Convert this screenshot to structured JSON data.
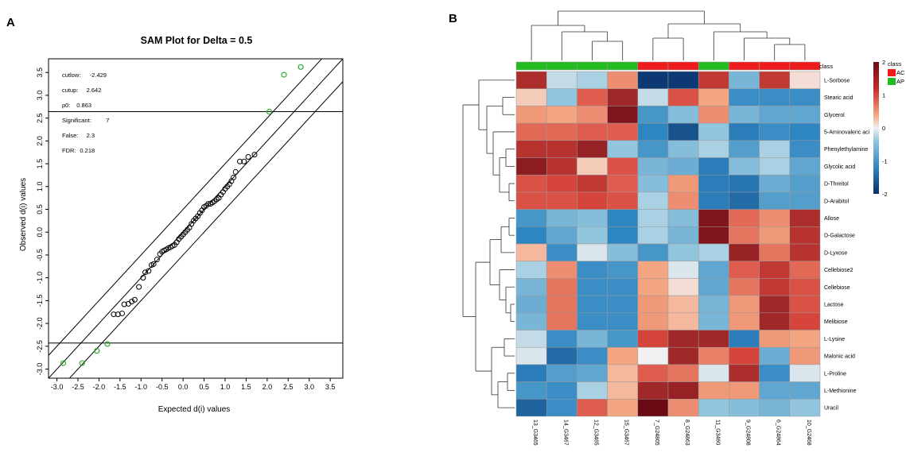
{
  "panels": {
    "a": "A",
    "b": "B"
  },
  "chart_data": [
    {
      "type": "scatter",
      "title": "SAM Plot for Delta = 0.5",
      "xlabel": "Expected d(i) values",
      "ylabel": "Observed d(i) values",
      "xlim": [
        -3.2,
        3.8
      ],
      "ylim": [
        -3.2,
        3.8
      ],
      "xticks": [
        "-3.0",
        "-2.5",
        "-2.0",
        "-1.5",
        "-1.0",
        "-0.5",
        "0.0",
        "0.5",
        "1.0",
        "1.5",
        "2.0",
        "2.5",
        "3.0",
        "3.5"
      ],
      "yticks": [
        "-3.0",
        "-2.5",
        "-2.0",
        "-1.5",
        "-1.0",
        "-0.5",
        "0.0",
        "0.5",
        "1.0",
        "1.5",
        "2.0",
        "2.5",
        "3.0",
        "3.5"
      ],
      "stats": [
        {
          "label": "cutlow:",
          "value": "-2.429"
        },
        {
          "label": "cutup:",
          "value": "2.642"
        },
        {
          "label": "p0:",
          "value": "0.863"
        },
        {
          "label": "Significant:",
          "value": "7"
        },
        {
          "label": "False:",
          "value": "2.3"
        },
        {
          "label": "FDR:",
          "value": "0.218"
        }
      ],
      "cutlow": -2.429,
      "cutup": 2.642,
      "delta": 0.5,
      "significant_color": "#2eaa2e",
      "nonsignificant_color": "#000000",
      "significant_points": [
        [
          -2.85,
          -2.87
        ],
        [
          -2.4,
          -2.87
        ],
        [
          -2.05,
          -2.6
        ],
        [
          -1.8,
          -2.45
        ],
        [
          2.05,
          2.64
        ],
        [
          2.4,
          3.45
        ],
        [
          2.8,
          3.62
        ]
      ],
      "points": [
        [
          -1.65,
          -1.8
        ],
        [
          -1.55,
          -1.8
        ],
        [
          -1.45,
          -1.78
        ],
        [
          -1.4,
          -1.58
        ],
        [
          -1.3,
          -1.57
        ],
        [
          -1.22,
          -1.52
        ],
        [
          -1.15,
          -1.48
        ],
        [
          -1.05,
          -1.2
        ],
        [
          -0.95,
          -1.0
        ],
        [
          -0.9,
          -0.88
        ],
        [
          -0.82,
          -0.85
        ],
        [
          -0.75,
          -0.72
        ],
        [
          -0.7,
          -0.7
        ],
        [
          -0.62,
          -0.6
        ],
        [
          -0.55,
          -0.48
        ],
        [
          -0.5,
          -0.43
        ],
        [
          -0.45,
          -0.4
        ],
        [
          -0.4,
          -0.38
        ],
        [
          -0.35,
          -0.35
        ],
        [
          -0.3,
          -0.33
        ],
        [
          -0.25,
          -0.3
        ],
        [
          -0.2,
          -0.28
        ],
        [
          -0.15,
          -0.22
        ],
        [
          -0.1,
          -0.15
        ],
        [
          -0.05,
          -0.1
        ],
        [
          0.0,
          -0.05
        ],
        [
          0.05,
          0.0
        ],
        [
          0.1,
          0.05
        ],
        [
          0.15,
          0.1
        ],
        [
          0.2,
          0.18
        ],
        [
          0.25,
          0.25
        ],
        [
          0.3,
          0.3
        ],
        [
          0.35,
          0.35
        ],
        [
          0.4,
          0.42
        ],
        [
          0.45,
          0.48
        ],
        [
          0.5,
          0.55
        ],
        [
          0.55,
          0.58
        ],
        [
          0.6,
          0.62
        ],
        [
          0.65,
          0.62
        ],
        [
          0.7,
          0.65
        ],
        [
          0.75,
          0.68
        ],
        [
          0.8,
          0.72
        ],
        [
          0.85,
          0.75
        ],
        [
          0.9,
          0.82
        ],
        [
          0.95,
          0.88
        ],
        [
          1.0,
          0.95
        ],
        [
          1.05,
          1.0
        ],
        [
          1.1,
          1.05
        ],
        [
          1.15,
          1.12
        ],
        [
          1.2,
          1.2
        ],
        [
          1.25,
          1.32
        ],
        [
          1.35,
          1.55
        ],
        [
          1.45,
          1.55
        ],
        [
          1.55,
          1.65
        ],
        [
          1.7,
          1.7
        ]
      ]
    },
    {
      "type": "heatmap",
      "title": "",
      "columns": [
        "13_G3465",
        "14_G3467",
        "12_G3465",
        "15_G3467",
        "7_G24805",
        "8_G24863",
        "11_G3460",
        "9_G24808",
        "6_G24864",
        "10_G2468"
      ],
      "rows": [
        "L-Sorbose",
        "Stearic acid",
        "Glycerol",
        "5-Aminovaleric aci",
        "Phenylethylamine",
        "Glycolic acid",
        "D-Threitol",
        "D-Arabitol",
        "Allose",
        "D-Galactose",
        "D-Lyxose",
        "Cellebiose2",
        "Cellebiose",
        "Lactose",
        "Melibiose",
        "L-Lysine",
        "Malonic acid",
        "L-Proline",
        "L-Methionine",
        "Uracil"
      ],
      "class_label": "class",
      "column_classes": [
        "AP",
        "AP",
        "AP",
        "AP",
        "AC",
        "AC",
        "AP",
        "AC",
        "AC",
        "AC"
      ],
      "legend": {
        "title": "class",
        "entries": [
          {
            "name": "AC",
            "color": "#ee1c1c"
          },
          {
            "name": "AP",
            "color": "#22bb22"
          }
        ],
        "colorbar_ticks": [
          "2",
          "1",
          "0",
          "-1",
          "-2"
        ],
        "colorbar_range": [
          -2,
          2
        ]
      },
      "values": [
        [
          1.6,
          -0.2,
          -0.3,
          0.6,
          -2.1,
          -2.1,
          1.4,
          -0.6,
          1.4,
          0.1
        ],
        [
          0.2,
          -0.4,
          1.0,
          1.7,
          -0.2,
          1.1,
          0.4,
          -1.1,
          -1.1,
          -1.1
        ],
        [
          0.5,
          0.4,
          0.6,
          2.0,
          -1.0,
          -0.5,
          0.6,
          -0.6,
          -0.8,
          -0.8
        ],
        [
          0.9,
          0.9,
          1.0,
          1.0,
          -1.2,
          -1.8,
          -0.4,
          -1.3,
          -1.1,
          -1.2
        ],
        [
          1.5,
          1.5,
          1.8,
          -0.4,
          -1.0,
          -0.5,
          -0.3,
          -0.9,
          -0.3,
          -1.1
        ],
        [
          1.9,
          1.5,
          0.2,
          1.1,
          -0.6,
          -0.7,
          -1.3,
          -0.5,
          -0.3,
          -0.8
        ],
        [
          1.1,
          1.2,
          1.4,
          1.0,
          -0.5,
          0.5,
          -1.3,
          -1.4,
          -0.7,
          -0.9
        ],
        [
          1.1,
          1.1,
          1.2,
          1.1,
          -0.3,
          0.6,
          -1.3,
          -1.5,
          -0.9,
          -0.9
        ],
        [
          -1.0,
          -0.6,
          -0.5,
          -1.2,
          -0.3,
          -0.5,
          2.0,
          0.9,
          0.6,
          1.6
        ],
        [
          -1.2,
          -0.8,
          -0.4,
          -1.2,
          -0.3,
          -0.6,
          2.0,
          0.8,
          0.5,
          1.5
        ],
        [
          0.3,
          -1.1,
          -0.1,
          -0.5,
          -1.0,
          -0.4,
          -0.3,
          1.8,
          0.8,
          1.5
        ],
        [
          -0.3,
          0.6,
          -1.1,
          -1.0,
          0.4,
          -0.1,
          -0.8,
          1.0,
          1.4,
          0.9
        ],
        [
          -0.6,
          0.8,
          -1.1,
          -1.1,
          0.4,
          0.1,
          -0.8,
          0.8,
          1.4,
          1.1
        ],
        [
          -0.7,
          0.8,
          -1.1,
          -1.1,
          0.5,
          0.3,
          -0.6,
          0.5,
          1.7,
          1.1
        ],
        [
          -0.6,
          0.8,
          -1.1,
          -1.1,
          0.5,
          0.3,
          -0.6,
          0.5,
          1.7,
          1.2
        ],
        [
          -0.2,
          -1.1,
          -0.6,
          -1.0,
          1.2,
          1.7,
          1.7,
          -1.3,
          0.5,
          0.4
        ],
        [
          -0.1,
          -1.5,
          -1.1,
          0.4,
          0.0,
          1.7,
          0.7,
          1.2,
          -0.7,
          0.5
        ],
        [
          -1.3,
          -0.9,
          -0.8,
          0.3,
          1.0,
          0.8,
          -0.1,
          1.6,
          -1.1,
          -0.1
        ],
        [
          -1.0,
          -1.1,
          -0.3,
          0.3,
          1.7,
          1.8,
          0.5,
          0.5,
          -0.8,
          -0.8
        ],
        [
          -1.6,
          -1.1,
          1.0,
          0.4,
          2.2,
          0.6,
          -0.4,
          -0.5,
          -0.6,
          -0.4
        ]
      ],
      "colors": {
        "high": "#6b0a15",
        "mid": "#f2f0f0",
        "low": "#08306b"
      }
    }
  ]
}
